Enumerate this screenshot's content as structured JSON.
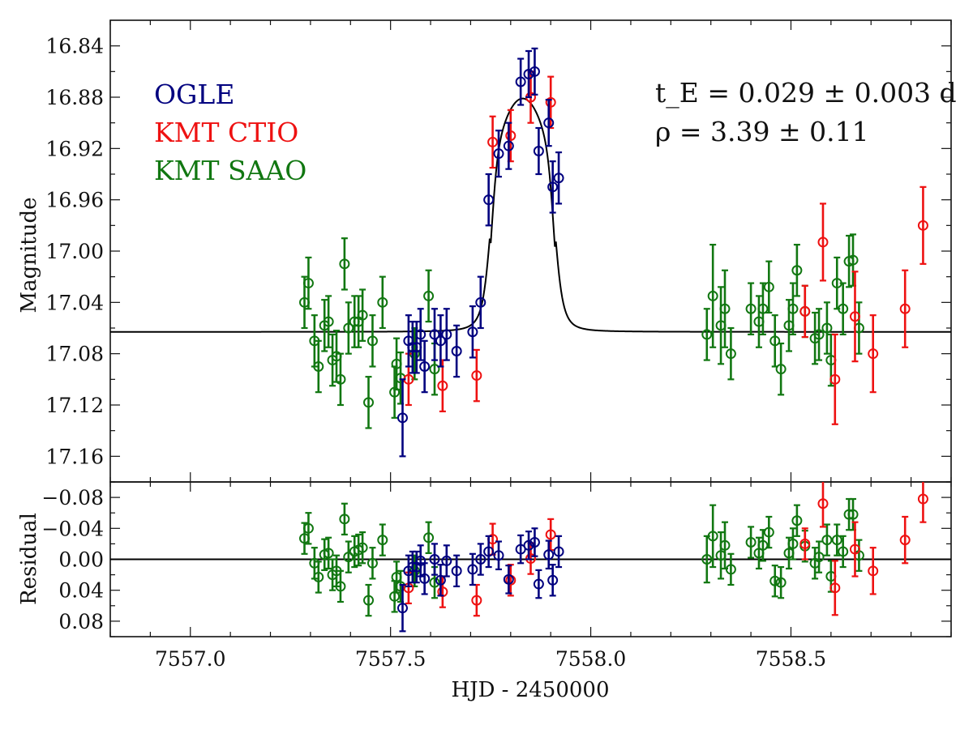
{
  "chart_data": [
    {
      "type": "scatter",
      "panel": "light-curve",
      "xlabel": "HJD - 2450000",
      "ylabel": "Magnitude",
      "xlim": [
        7556.8,
        7558.9
      ],
      "ylim": [
        17.18,
        16.82
      ],
      "y_inverted": true,
      "yticks": [
        "16.84",
        "16.88",
        "16.92",
        "16.96",
        "17.00",
        "17.04",
        "17.08",
        "17.12",
        "17.16"
      ],
      "legend": [
        "OGLE",
        "KMT CTIO",
        "KMT SAAO"
      ],
      "legend_position": "top-left",
      "annotations": [
        "t_E = 0.029 ± 0.003 d",
        "ρ = 3.39 ± 0.11"
      ],
      "baseline": 17.063,
      "model_peak": {
        "x": 7557.83,
        "y": 16.881
      },
      "series": [
        {
          "name": "OGLE",
          "color": "#00007f",
          "points": [
            [
              7557.53,
              17.13,
              0.03
            ],
            [
              7557.545,
              17.07,
              0.02
            ],
            [
              7557.555,
              17.075,
              0.02
            ],
            [
              7557.565,
              17.075,
              0.02
            ],
            [
              7557.575,
              17.065,
              0.02
            ],
            [
              7557.585,
              17.09,
              0.02
            ],
            [
              7557.61,
              17.065,
              0.02
            ],
            [
              7557.625,
              17.07,
              0.02
            ],
            [
              7557.64,
              17.065,
              0.02
            ],
            [
              7557.665,
              17.078,
              0.02
            ],
            [
              7557.705,
              17.063,
              0.02
            ],
            [
              7557.725,
              17.04,
              0.02
            ],
            [
              7557.745,
              16.96,
              0.02
            ],
            [
              7557.77,
              16.924,
              0.018
            ],
            [
              7557.795,
              16.918,
              0.018
            ],
            [
              7557.825,
              16.868,
              0.018
            ],
            [
              7557.845,
              16.862,
              0.018
            ],
            [
              7557.86,
              16.86,
              0.018
            ],
            [
              7557.87,
              16.922,
              0.018
            ],
            [
              7557.895,
              16.9,
              0.018
            ],
            [
              7557.905,
              16.95,
              0.02
            ],
            [
              7557.92,
              16.943,
              0.02
            ]
          ]
        },
        {
          "name": "KMT CTIO",
          "color": "#ee1111",
          "points": [
            [
              7557.545,
              17.1,
              0.02
            ],
            [
              7557.63,
              17.105,
              0.02
            ],
            [
              7557.715,
              17.097,
              0.02
            ],
            [
              7557.755,
              16.915,
              0.02
            ],
            [
              7557.8,
              16.91,
              0.02
            ],
            [
              7557.85,
              16.88,
              0.02
            ],
            [
              7557.9,
              16.884,
              0.02
            ],
            [
              7558.535,
              17.047,
              0.02
            ],
            [
              7558.58,
              16.993,
              0.03
            ],
            [
              7558.61,
              17.1,
              0.035
            ],
            [
              7558.66,
              17.051,
              0.035
            ],
            [
              7558.705,
              17.08,
              0.03
            ],
            [
              7558.785,
              17.045,
              0.03
            ],
            [
              7558.83,
              16.98,
              0.03
            ]
          ]
        },
        {
          "name": "KMT SAAO",
          "color": "#117711",
          "points": [
            [
              7557.285,
              17.04,
              0.02
            ],
            [
              7557.295,
              17.025,
              0.02
            ],
            [
              7557.31,
              17.07,
              0.02
            ],
            [
              7557.32,
              17.09,
              0.02
            ],
            [
              7557.335,
              17.058,
              0.02
            ],
            [
              7557.345,
              17.055,
              0.02
            ],
            [
              7557.355,
              17.085,
              0.02
            ],
            [
              7557.365,
              17.082,
              0.02
            ],
            [
              7557.375,
              17.1,
              0.02
            ],
            [
              7557.385,
              17.01,
              0.02
            ],
            [
              7557.395,
              17.06,
              0.02
            ],
            [
              7557.41,
              17.055,
              0.02
            ],
            [
              7557.42,
              17.055,
              0.02
            ],
            [
              7557.43,
              17.05,
              0.02
            ],
            [
              7557.445,
              17.118,
              0.02
            ],
            [
              7557.455,
              17.07,
              0.02
            ],
            [
              7557.48,
              17.04,
              0.02
            ],
            [
              7557.51,
              17.11,
              0.02
            ],
            [
              7557.515,
              17.088,
              0.02
            ],
            [
              7557.525,
              17.099,
              0.02
            ],
            [
              7557.56,
              17.08,
              0.02
            ],
            [
              7557.595,
              17.035,
              0.02
            ],
            [
              7557.61,
              17.092,
              0.02
            ],
            [
              7558.29,
              17.065,
              0.02
            ],
            [
              7558.305,
              17.035,
              0.04
            ],
            [
              7558.325,
              17.058,
              0.03
            ],
            [
              7558.335,
              17.045,
              0.03
            ],
            [
              7558.35,
              17.08,
              0.02
            ],
            [
              7558.4,
              17.045,
              0.02
            ],
            [
              7558.42,
              17.055,
              0.02
            ],
            [
              7558.43,
              17.045,
              0.02
            ],
            [
              7558.445,
              17.028,
              0.02
            ],
            [
              7558.46,
              17.07,
              0.02
            ],
            [
              7558.475,
              17.092,
              0.02
            ],
            [
              7558.495,
              17.058,
              0.02
            ],
            [
              7558.505,
              17.045,
              0.02
            ],
            [
              7558.515,
              17.015,
              0.02
            ],
            [
              7558.535,
              17.047,
              0.02
            ],
            [
              7558.56,
              17.068,
              0.02
            ],
            [
              7558.57,
              17.065,
              0.02
            ],
            [
              7558.59,
              17.06,
              0.02
            ],
            [
              7558.6,
              17.085,
              0.02
            ],
            [
              7558.615,
              17.025,
              0.02
            ],
            [
              7558.63,
              17.045,
              0.02
            ],
            [
              7558.645,
              17.008,
              0.02
            ],
            [
              7558.655,
              17.007,
              0.02
            ],
            [
              7558.67,
              17.06,
              0.02
            ]
          ]
        }
      ]
    },
    {
      "type": "scatter",
      "panel": "residual",
      "xlabel": "HJD - 2450000",
      "ylabel": "Residual",
      "xlim": [
        7556.8,
        7558.9
      ],
      "ylim": [
        0.1,
        -0.1
      ],
      "y_inverted": true,
      "yticks": [
        "−0.08",
        "−0.04",
        "0.00",
        "0.04",
        "0.08"
      ],
      "xticks": [
        "7557.0",
        "7557.5",
        "7558.0",
        "7558.5"
      ],
      "series": [
        {
          "name": "OGLE",
          "color": "#00007f",
          "points": [
            [
              7557.53,
              0.063,
              0.03
            ],
            [
              7557.545,
              0.015,
              0.02
            ],
            [
              7557.555,
              0.01,
              0.02
            ],
            [
              7557.565,
              0.01,
              0.02
            ],
            [
              7557.575,
              0.002,
              0.02
            ],
            [
              7557.585,
              0.025,
              0.02
            ],
            [
              7557.61,
              0.0,
              0.02
            ],
            [
              7557.625,
              0.027,
              0.02
            ],
            [
              7557.64,
              0.002,
              0.02
            ],
            [
              7557.665,
              0.015,
              0.02
            ],
            [
              7557.705,
              0.013,
              0.02
            ],
            [
              7557.725,
              0.0,
              0.02
            ],
            [
              7557.745,
              -0.01,
              0.02
            ],
            [
              7557.77,
              -0.005,
              0.018
            ],
            [
              7557.795,
              0.026,
              0.018
            ],
            [
              7557.825,
              -0.013,
              0.018
            ],
            [
              7557.845,
              -0.018,
              0.018
            ],
            [
              7557.86,
              -0.022,
              0.018
            ],
            [
              7557.87,
              0.032,
              0.018
            ],
            [
              7557.895,
              -0.006,
              0.018
            ],
            [
              7557.905,
              0.027,
              0.02
            ],
            [
              7557.92,
              -0.01,
              0.02
            ]
          ]
        },
        {
          "name": "KMT CTIO",
          "color": "#ee1111",
          "points": [
            [
              7557.545,
              0.037,
              0.02
            ],
            [
              7557.63,
              0.042,
              0.02
            ],
            [
              7557.715,
              0.053,
              0.02
            ],
            [
              7557.755,
              -0.026,
              0.02
            ],
            [
              7557.8,
              0.027,
              0.02
            ],
            [
              7557.85,
              -0.001,
              0.02
            ],
            [
              7557.9,
              -0.032,
              0.02
            ],
            [
              7558.535,
              -0.02,
              0.02
            ],
            [
              7558.58,
              -0.072,
              0.03
            ],
            [
              7558.61,
              0.037,
              0.035
            ],
            [
              7558.66,
              -0.013,
              0.035
            ],
            [
              7558.705,
              0.015,
              0.03
            ],
            [
              7558.785,
              -0.025,
              0.03
            ],
            [
              7558.83,
              -0.078,
              0.03
            ]
          ]
        },
        {
          "name": "KMT SAAO",
          "color": "#117711",
          "points": [
            [
              7557.285,
              -0.027,
              0.02
            ],
            [
              7557.295,
              -0.04,
              0.02
            ],
            [
              7557.31,
              0.005,
              0.02
            ],
            [
              7557.32,
              0.023,
              0.02
            ],
            [
              7557.335,
              -0.006,
              0.02
            ],
            [
              7557.345,
              -0.008,
              0.02
            ],
            [
              7557.355,
              0.02,
              0.02
            ],
            [
              7557.365,
              0.015,
              0.02
            ],
            [
              7557.375,
              0.035,
              0.02
            ],
            [
              7557.385,
              -0.052,
              0.02
            ],
            [
              7557.395,
              -0.003,
              0.02
            ],
            [
              7557.41,
              -0.01,
              0.02
            ],
            [
              7557.42,
              -0.012,
              0.02
            ],
            [
              7557.43,
              -0.015,
              0.02
            ],
            [
              7557.445,
              0.053,
              0.02
            ],
            [
              7557.455,
              0.005,
              0.02
            ],
            [
              7557.48,
              -0.025,
              0.02
            ],
            [
              7557.51,
              0.048,
              0.02
            ],
            [
              7557.515,
              0.023,
              0.02
            ],
            [
              7557.525,
              0.035,
              0.02
            ],
            [
              7557.56,
              0.015,
              0.02
            ],
            [
              7557.595,
              -0.028,
              0.02
            ],
            [
              7557.61,
              0.03,
              0.02
            ],
            [
              7558.29,
              0.0,
              0.03
            ],
            [
              7558.305,
              -0.03,
              0.04
            ],
            [
              7558.325,
              -0.005,
              0.03
            ],
            [
              7558.335,
              -0.018,
              0.03
            ],
            [
              7558.35,
              0.013,
              0.02
            ],
            [
              7558.4,
              -0.022,
              0.02
            ],
            [
              7558.42,
              -0.008,
              0.02
            ],
            [
              7558.43,
              -0.018,
              0.02
            ],
            [
              7558.445,
              -0.035,
              0.02
            ],
            [
              7558.46,
              0.028,
              0.02
            ],
            [
              7558.475,
              0.03,
              0.02
            ],
            [
              7558.495,
              -0.008,
              0.02
            ],
            [
              7558.505,
              -0.02,
              0.02
            ],
            [
              7558.515,
              -0.05,
              0.02
            ],
            [
              7558.535,
              -0.017,
              0.02
            ],
            [
              7558.56,
              0.005,
              0.02
            ],
            [
              7558.57,
              -0.003,
              0.02
            ],
            [
              7558.59,
              -0.025,
              0.02
            ],
            [
              7558.6,
              0.022,
              0.02
            ],
            [
              7558.615,
              -0.025,
              0.02
            ],
            [
              7558.63,
              -0.01,
              0.02
            ],
            [
              7558.645,
              -0.058,
              0.02
            ],
            [
              7558.655,
              -0.058,
              0.02
            ],
            [
              7558.67,
              -0.005,
              0.02
            ]
          ]
        }
      ]
    }
  ]
}
